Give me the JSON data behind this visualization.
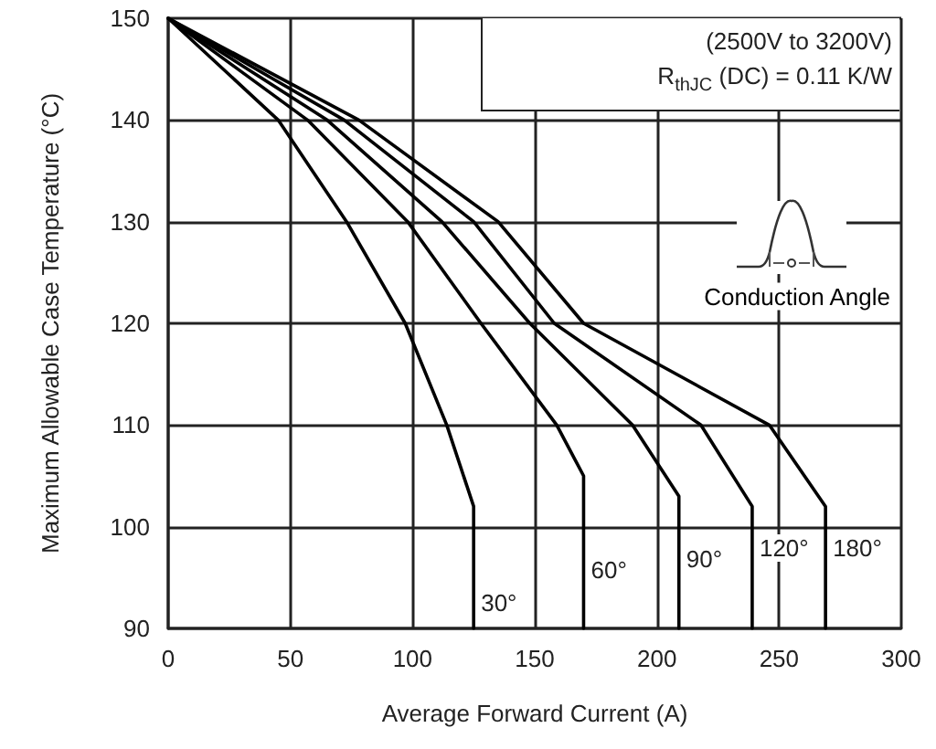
{
  "chart_data": {
    "type": "line",
    "xlabel": "Average Forward Current (A)",
    "ylabel": "Maximum Allowable Case Temperature (°C)",
    "annotations": [
      "(2500V to 3200V)",
      "R$_{thJC}$ (DC) = 0.11 K/W",
      "Conduction Angle"
    ],
    "xlim": [
      0,
      300
    ],
    "xticks": [
      0,
      50,
      100,
      150,
      200,
      250,
      300
    ],
    "ylim": [
      90,
      150
    ],
    "yticks": [
      90,
      100,
      110,
      120,
      130,
      140,
      150
    ],
    "grid": true,
    "legend": false,
    "line_style": "solid",
    "series": [
      {
        "name": "30°",
        "color": "#000000",
        "x": [
          0,
          45,
          73,
          97,
          114,
          125,
          125
        ],
        "values": [
          150,
          140,
          130,
          120,
          110,
          102,
          90
        ]
      },
      {
        "name": "60°",
        "color": "#000000",
        "x": [
          0,
          57,
          98,
          128,
          159,
          170,
          170
        ],
        "values": [
          150,
          140,
          130,
          120,
          110,
          105,
          90
        ]
      },
      {
        "name": "90°",
        "color": "#000000",
        "x": [
          0,
          65,
          112,
          148,
          190,
          209,
          209
        ],
        "values": [
          150,
          140,
          130,
          120,
          110,
          103,
          90
        ]
      },
      {
        "name": "120°",
        "color": "#000000",
        "x": [
          0,
          72,
          125,
          158,
          218,
          239,
          239
        ],
        "values": [
          150,
          140,
          130,
          120,
          110,
          102,
          90
        ]
      },
      {
        "name": "180°",
        "color": "#000000",
        "x": [
          0,
          78,
          135,
          170,
          246,
          269,
          269
        ],
        "values": [
          150,
          140,
          130,
          120,
          110,
          102,
          90
        ]
      }
    ]
  }
}
